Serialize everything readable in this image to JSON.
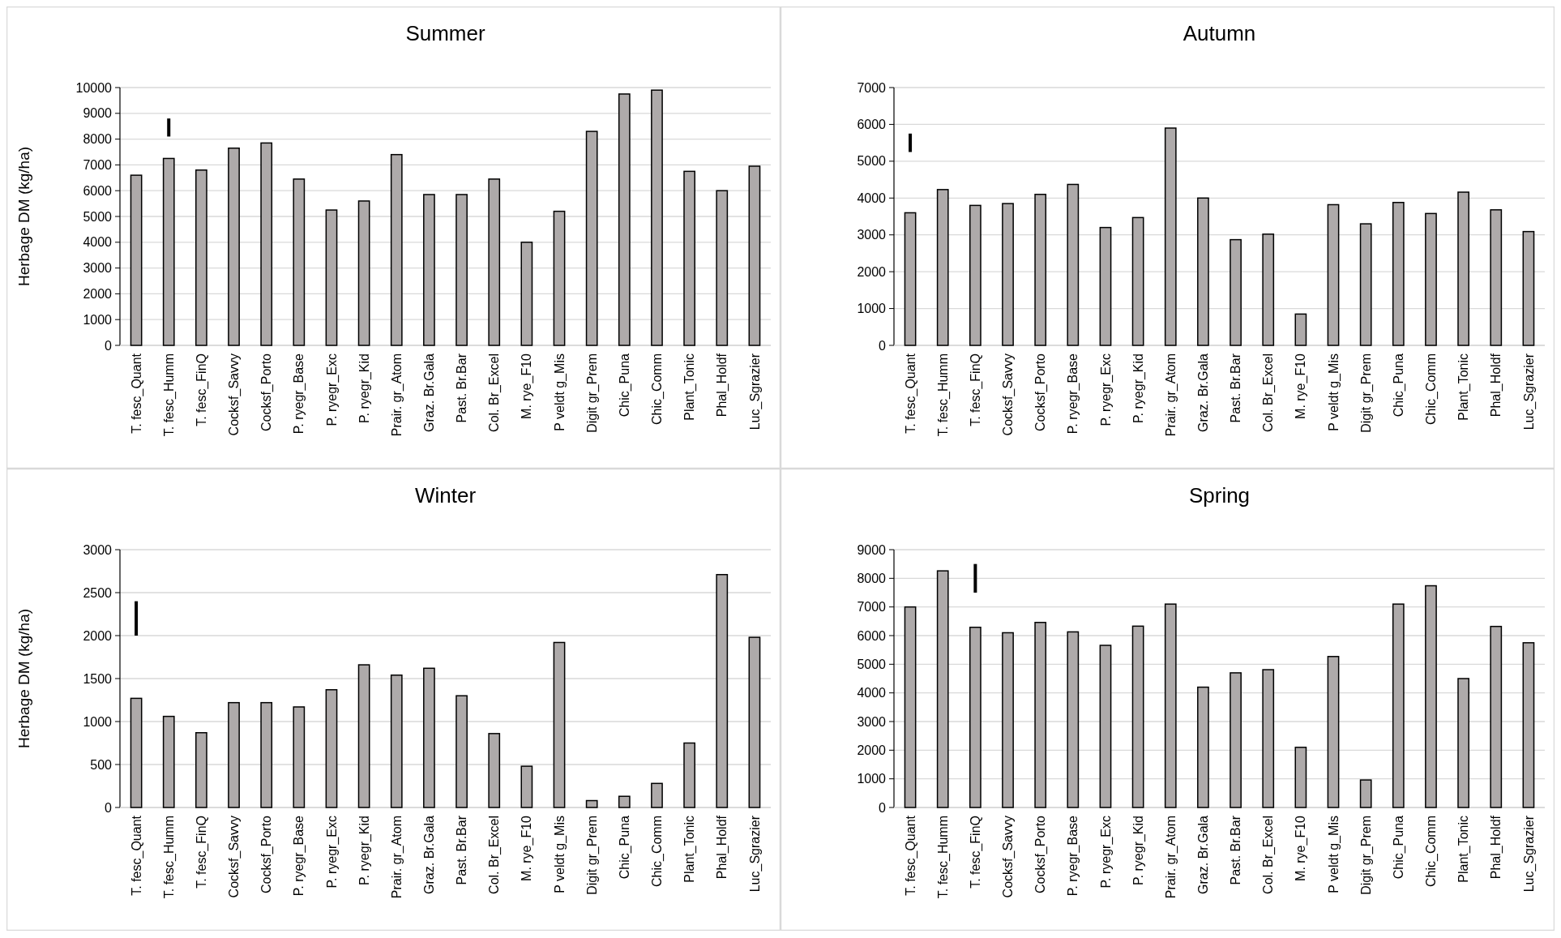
{
  "chart_data": [
    {
      "type": "bar",
      "title": "Summer",
      "ylabel": "Herbage DM (kg/ha)",
      "categories": [
        "T. fesc_Quant",
        "T. fesc_Humm",
        "T. fesc_FinQ",
        "Cocksf_Savvy",
        "Cocksf_Porto",
        "P. ryegr_Base",
        "P. ryegr_Exc",
        "P. ryegr_Kid",
        "Prair. gr_Atom",
        "Graz. Br.Gala",
        "Past. Br.Bar",
        "Col. Br_Excel",
        "M. rye_F10",
        "P veldt g_Mis",
        "Digit gr_Prem",
        "Chic_Puna",
        "Chic_Comm",
        "Plant_Tonic",
        "Phal_Holdf",
        "Luc_Sgrazier"
      ],
      "series": [
        {
          "color": "#aeaaaa",
          "values": [
            6600,
            7250,
            6800,
            7650,
            7850,
            6450,
            5250,
            5600,
            7400,
            5850,
            5850,
            6450,
            4000,
            5200,
            8300,
            9750,
            9900,
            6750,
            6000,
            6950
          ]
        },
        {
          "color": "#000000",
          "values": [
            null,
            700,
            null,
            null,
            null,
            null,
            null,
            null,
            null,
            null,
            null,
            null,
            null,
            null,
            null,
            null,
            null,
            null,
            null,
            null
          ],
          "base": [
            null,
            8100,
            null,
            null,
            null,
            null,
            null,
            null,
            null,
            null,
            null,
            null,
            null,
            null,
            null,
            null,
            null,
            null,
            null,
            null
          ]
        }
      ],
      "ylim": [
        0,
        10000
      ],
      "yticks": [
        0,
        1000,
        2000,
        3000,
        4000,
        5000,
        6000,
        7000,
        8000,
        9000,
        10000
      ],
      "grid": "y"
    },
    {
      "type": "bar",
      "title": "Autumn",
      "categories": [
        "T. fesc_Quant",
        "T. fesc_Humm",
        "T. fesc_FinQ",
        "Cocksf_Savvy",
        "Cocksf_Porto",
        "P. ryegr_Base",
        "P. ryegr_Exc",
        "P. ryegr_Kid",
        "Prair. gr_Atom",
        "Graz. Br.Gala",
        "Past. Br.Bar",
        "Col. Br_Excel",
        "M. rye_F10",
        "P veldt g_Mis",
        "Digit gr_Prem",
        "Chic_Puna",
        "Chic_Comm",
        "Plant_Tonic",
        "Phal_Holdf",
        "Luc_Sgrazier"
      ],
      "series": [
        {
          "color": "#aeaaaa",
          "values": [
            3600,
            4230,
            3800,
            3850,
            4100,
            4370,
            3200,
            3470,
            5900,
            4000,
            2870,
            3020,
            850,
            3820,
            3300,
            3880,
            3580,
            4160,
            3680,
            3090
          ]
        },
        {
          "color": "#000000",
          "values": [
            500,
            null,
            null,
            null,
            null,
            null,
            null,
            null,
            null,
            null,
            null,
            null,
            null,
            null,
            null,
            null,
            null,
            null,
            null,
            null
          ],
          "base": [
            5250,
            null,
            null,
            null,
            null,
            null,
            null,
            null,
            null,
            null,
            null,
            null,
            null,
            null,
            null,
            null,
            null,
            null,
            null,
            null
          ]
        }
      ],
      "ylim": [
        0,
        7000
      ],
      "yticks": [
        0,
        1000,
        2000,
        3000,
        4000,
        5000,
        6000,
        7000
      ],
      "grid": "y"
    },
    {
      "type": "bar",
      "title": "Winter",
      "ylabel": "Herbage DM (kg/ha)",
      "categories": [
        "T. fesc_Quant",
        "T. fesc_Humm",
        "T. fesc_FinQ",
        "Cocksf_Savvy",
        "Cocksf_Porto",
        "P. ryegr_Base",
        "P. ryegr_Exc",
        "P. ryegr_Kid",
        "Prair. gr_Atom",
        "Graz. Br.Gala",
        "Past. Br.Bar",
        "Col. Br_Excel",
        "M. rye_F10",
        "P veldt g_Mis",
        "Digit gr_Prem",
        "Chic_Puna",
        "Chic_Comm",
        "Plant_Tonic",
        "Phal_Holdf",
        "Luc_Sgrazier"
      ],
      "series": [
        {
          "color": "#aeaaaa",
          "values": [
            1270,
            1060,
            870,
            1220,
            1220,
            1170,
            1370,
            1660,
            1540,
            1620,
            1300,
            860,
            480,
            1920,
            80,
            130,
            280,
            750,
            2710,
            1980
          ]
        },
        {
          "color": "#000000",
          "values": [
            400,
            null,
            null,
            null,
            null,
            null,
            null,
            null,
            null,
            null,
            null,
            null,
            null,
            null,
            null,
            null,
            null,
            null,
            null,
            null
          ],
          "base": [
            2000,
            null,
            null,
            null,
            null,
            null,
            null,
            null,
            null,
            null,
            null,
            null,
            null,
            null,
            null,
            null,
            null,
            null,
            null,
            null
          ]
        }
      ],
      "ylim": [
        0,
        3000
      ],
      "yticks": [
        0,
        500,
        1000,
        1500,
        2000,
        2500,
        3000
      ],
      "grid": "y"
    },
    {
      "type": "bar",
      "title": "Spring",
      "categories": [
        "T. fesc_Quant",
        "T. fesc_Humm",
        "T. fesc_FinQ",
        "Cocksf_Savvy",
        "Cocksf_Porto",
        "P. ryegr_Base",
        "P. ryegr_Exc",
        "P. ryegr_Kid",
        "Prair. gr_Atom",
        "Graz. Br.Gala",
        "Past. Br.Bar",
        "Col. Br_Excel",
        "M. rye_F10",
        "P veldt g_Mis",
        "Digit gr_Prem",
        "Chic_Puna",
        "Chic_Comm",
        "Plant_Tonic",
        "Phal_Holdf",
        "Luc_Sgrazier"
      ],
      "series": [
        {
          "color": "#aeaaaa",
          "values": [
            7000,
            8260,
            6290,
            6100,
            6460,
            6130,
            5660,
            6330,
            7100,
            4200,
            4700,
            4810,
            2100,
            5270,
            960,
            7100,
            7740,
            4500,
            6320,
            5750
          ]
        },
        {
          "color": "#000000",
          "values": [
            null,
            null,
            1000,
            null,
            null,
            null,
            null,
            null,
            null,
            null,
            null,
            null,
            null,
            null,
            null,
            null,
            null,
            null,
            null,
            null
          ],
          "base": [
            null,
            null,
            7500,
            null,
            null,
            null,
            null,
            null,
            null,
            null,
            null,
            null,
            null,
            null,
            null,
            null,
            null,
            null,
            null,
            null
          ]
        }
      ],
      "ylim": [
        0,
        9000
      ],
      "yticks": [
        0,
        1000,
        2000,
        3000,
        4000,
        5000,
        6000,
        7000,
        8000,
        9000
      ],
      "grid": "y"
    }
  ]
}
